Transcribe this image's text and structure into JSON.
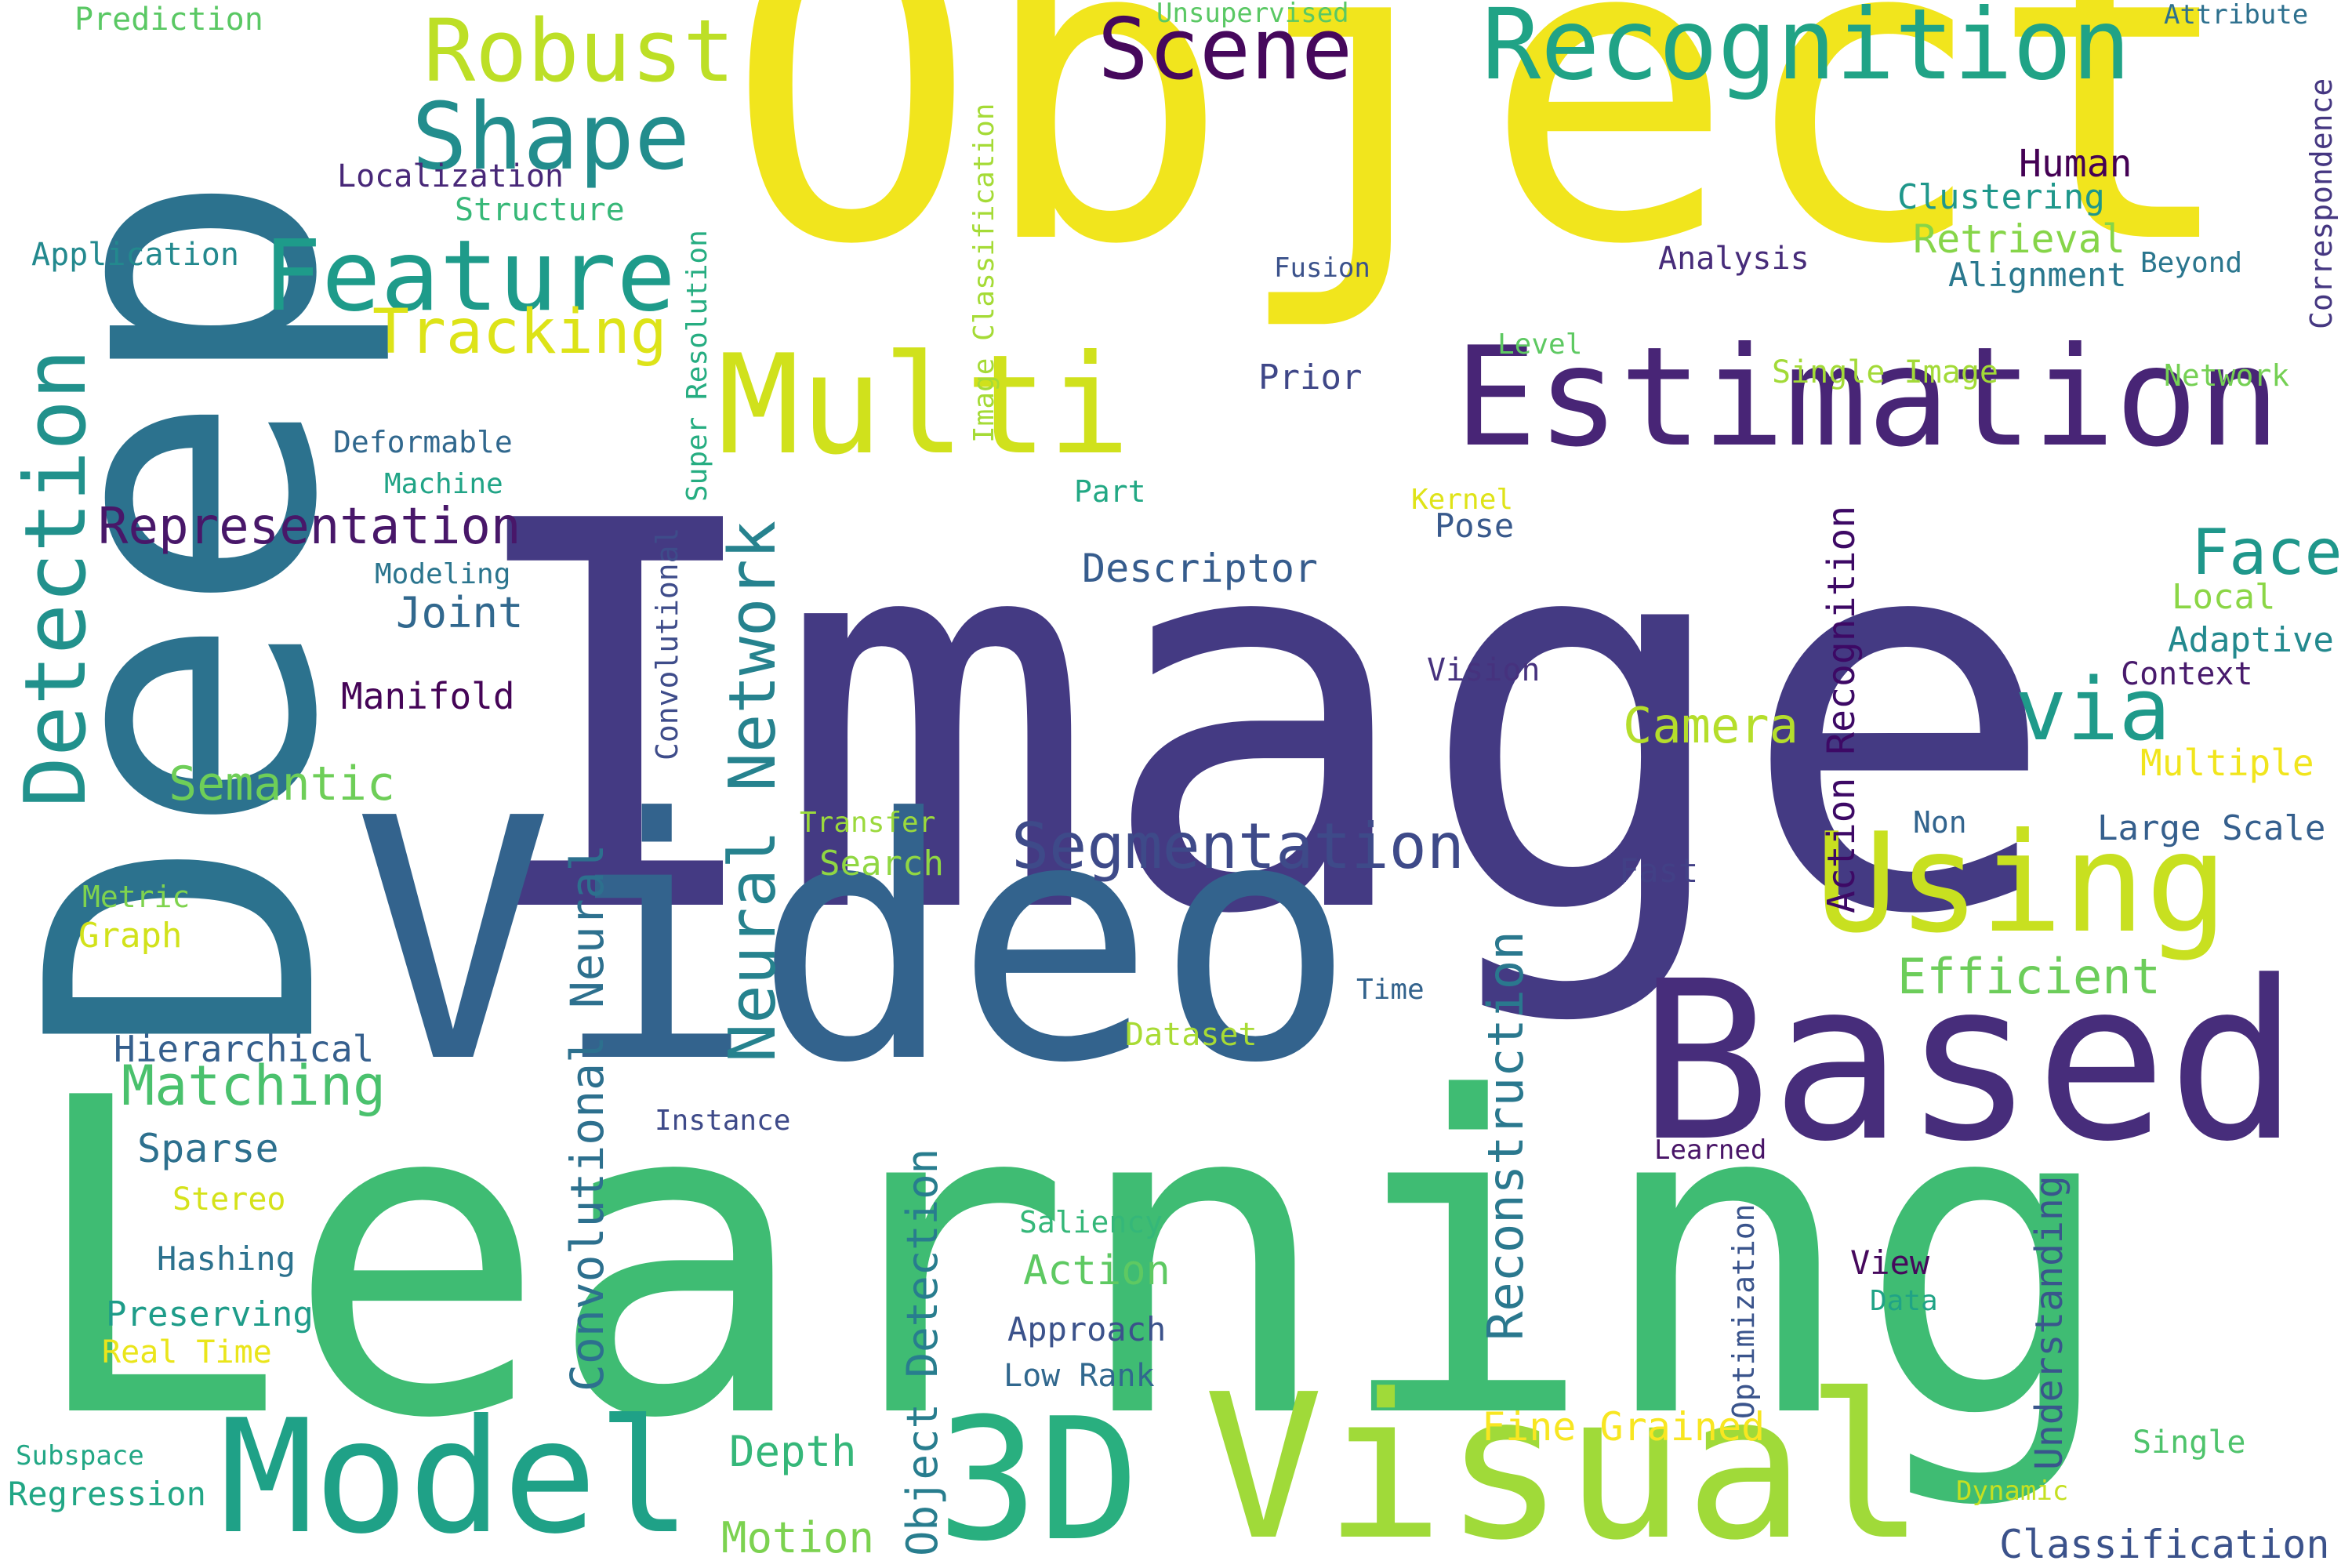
{
  "words": [
    {
      "text": "Image",
      "color": "#443a83"
    },
    {
      "text": "Object",
      "color": "#f1e51d"
    },
    {
      "text": "Learning",
      "color": "#3fbc73"
    },
    {
      "text": "Deep",
      "color": "#2c728e"
    },
    {
      "text": "Video",
      "color": "#33638d"
    },
    {
      "text": "Detection",
      "color": "#21918c"
    },
    {
      "text": "Based",
      "color": "#472d7b"
    },
    {
      "text": "Visual",
      "color": "#a0da39"
    },
    {
      "text": "3D",
      "color": "#29af7f"
    },
    {
      "text": "Model",
      "color": "#1fa187"
    },
    {
      "text": "Estimation",
      "color": "#482576"
    },
    {
      "text": "Multi",
      "color": "#d0e11c"
    },
    {
      "text": "Using",
      "color": "#c8e020"
    },
    {
      "text": "Recognition",
      "color": "#20a386"
    },
    {
      "text": "Feature",
      "color": "#1e9b8a"
    },
    {
      "text": "Shape",
      "color": "#228d8d"
    },
    {
      "text": "Robust",
      "color": "#bddf26"
    },
    {
      "text": "Scene",
      "color": "#46085c"
    },
    {
      "text": "Segmentation",
      "color": "#3e4a89"
    },
    {
      "text": "via",
      "color": "#1f9a8a"
    },
    {
      "text": "Face",
      "color": "#1f978b"
    },
    {
      "text": "Neural Network",
      "color": "#26828e"
    },
    {
      "text": "Tracking",
      "color": "#dde318"
    },
    {
      "text": "Representation",
      "color": "#481769"
    },
    {
      "text": "Matching",
      "color": "#4ac16d"
    },
    {
      "text": "Convolutional Neural",
      "color": "#2d708e"
    },
    {
      "text": "Reconstruction",
      "color": "#2a788e"
    },
    {
      "text": "Action Recognition",
      "color": "#3d0965"
    },
    {
      "text": "Efficient",
      "color": "#6ccd5a"
    },
    {
      "text": "Object Detection",
      "color": "#287d8e"
    },
    {
      "text": "Camera",
      "color": "#b5de2b"
    },
    {
      "text": "Semantic",
      "color": "#6ece58"
    },
    {
      "text": "Joint",
      "color": "#31688e"
    },
    {
      "text": "Descriptor",
      "color": "#365c8d"
    },
    {
      "text": "Depth",
      "color": "#35b779"
    },
    {
      "text": "Motion",
      "color": "#7cd250"
    },
    {
      "text": "Fine Grained",
      "color": "#f8e621"
    },
    {
      "text": "Understanding",
      "color": "#39568c"
    },
    {
      "text": "Action",
      "color": "#5ec962"
    },
    {
      "text": "Sparse",
      "color": "#2d708e"
    },
    {
      "text": "Retrieval",
      "color": "#86d549"
    },
    {
      "text": "Classification",
      "color": "#3b528b"
    },
    {
      "text": "Human",
      "color": "#440154"
    },
    {
      "text": "Manifold",
      "color": "#450457"
    },
    {
      "text": "Hierarchical",
      "color": "#355f8d"
    },
    {
      "text": "Preserving",
      "color": "#1e9c89"
    },
    {
      "text": "Search",
      "color": "#90d743"
    },
    {
      "text": "Regression",
      "color": "#21a685"
    },
    {
      "text": "Approach",
      "color": "#3b528b"
    },
    {
      "text": "Multiple",
      "color": "#f1e51d"
    },
    {
      "text": "Large Scale",
      "color": "#355f8d"
    },
    {
      "text": "Adaptive",
      "color": "#23898e"
    },
    {
      "text": "Local",
      "color": "#8bd646"
    },
    {
      "text": "Clustering",
      "color": "#1f978b"
    },
    {
      "text": "Alignment",
      "color": "#2a788e"
    },
    {
      "text": "Analysis",
      "color": "#472c7a"
    },
    {
      "text": "Context",
      "color": "#481a6c"
    },
    {
      "text": "Localization",
      "color": "#482878"
    },
    {
      "text": "Structure",
      "color": "#37b878"
    },
    {
      "text": "Application",
      "color": "#23898e"
    },
    {
      "text": "Deformable",
      "color": "#31688e"
    },
    {
      "text": "Machine",
      "color": "#20a486"
    },
    {
      "text": "Modeling",
      "color": "#2b758e"
    },
    {
      "text": "Convolutional",
      "color": "#3e4c8a"
    },
    {
      "text": "Super Resolution",
      "color": "#26ad81"
    },
    {
      "text": "Image Classification",
      "color": "#a5db36"
    },
    {
      "text": "Prior",
      "color": "#3f4788"
    },
    {
      "text": "Pose",
      "color": "#38598c"
    },
    {
      "text": "Vision",
      "color": "#46327e"
    },
    {
      "text": "Fast",
      "color": "#424086"
    },
    {
      "text": "Dataset",
      "color": "#a8db34"
    },
    {
      "text": "Time",
      "color": "#33638d"
    },
    {
      "text": "Saliency",
      "color": "#35b779"
    },
    {
      "text": "Low Rank",
      "color": "#31688e"
    },
    {
      "text": "View",
      "color": "#46085c"
    },
    {
      "text": "Optimization",
      "color": "#3a548c"
    },
    {
      "text": "Data",
      "color": "#20a386"
    },
    {
      "text": "Single",
      "color": "#4ec36b"
    },
    {
      "text": "Dynamic",
      "color": "#c5e021"
    },
    {
      "text": "Learned",
      "color": "#481467"
    },
    {
      "text": "Instance",
      "color": "#3e4a89"
    },
    {
      "text": "Transfer",
      "color": "#9bd93c"
    },
    {
      "text": "Metric",
      "color": "#7fd34e"
    },
    {
      "text": "Graph",
      "color": "#d2e21b"
    },
    {
      "text": "Stereo",
      "color": "#d5e21a"
    },
    {
      "text": "Hashing",
      "color": "#2c728e"
    },
    {
      "text": "Real Time",
      "color": "#eae51a"
    },
    {
      "text": "Subspace",
      "color": "#22a785"
    },
    {
      "text": "Non",
      "color": "#32648e"
    },
    {
      "text": "Kernel",
      "color": "#dfe318"
    },
    {
      "text": "Part",
      "color": "#22a884"
    },
    {
      "text": "Level",
      "color": "#5ec962"
    },
    {
      "text": "Single Image",
      "color": "#a2da37"
    },
    {
      "text": "Network",
      "color": "#75d054"
    },
    {
      "text": "Fusion",
      "color": "#3b528b"
    },
    {
      "text": "Beyond",
      "color": "#2a768e"
    },
    {
      "text": "Correspondence",
      "color": "#453781"
    },
    {
      "text": "Attribute",
      "color": "#2d708e"
    },
    {
      "text": "Unsupervised",
      "color": "#5ac864"
    },
    {
      "text": "Prediction",
      "color": "#5ac864"
    }
  ]
}
